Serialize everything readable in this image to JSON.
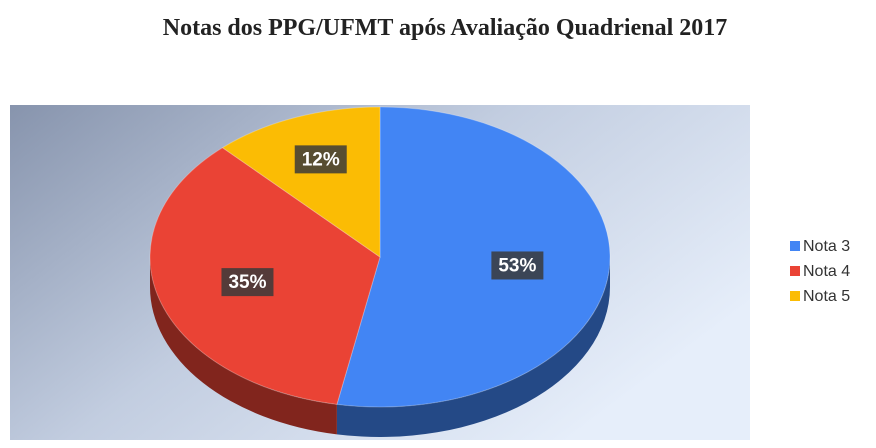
{
  "chart_data": {
    "type": "pie",
    "title": "Notas dos PPG/UFMT após Avaliação Quadrienal 2017",
    "categories": [
      "Nota 3",
      "Nota 4",
      "Nota 5"
    ],
    "values": [
      53,
      35,
      12
    ],
    "value_labels": [
      "53%",
      "35%",
      "12%"
    ],
    "colors": [
      "#4285f4",
      "#ea4335",
      "#fbbc04"
    ],
    "legend": "right"
  }
}
